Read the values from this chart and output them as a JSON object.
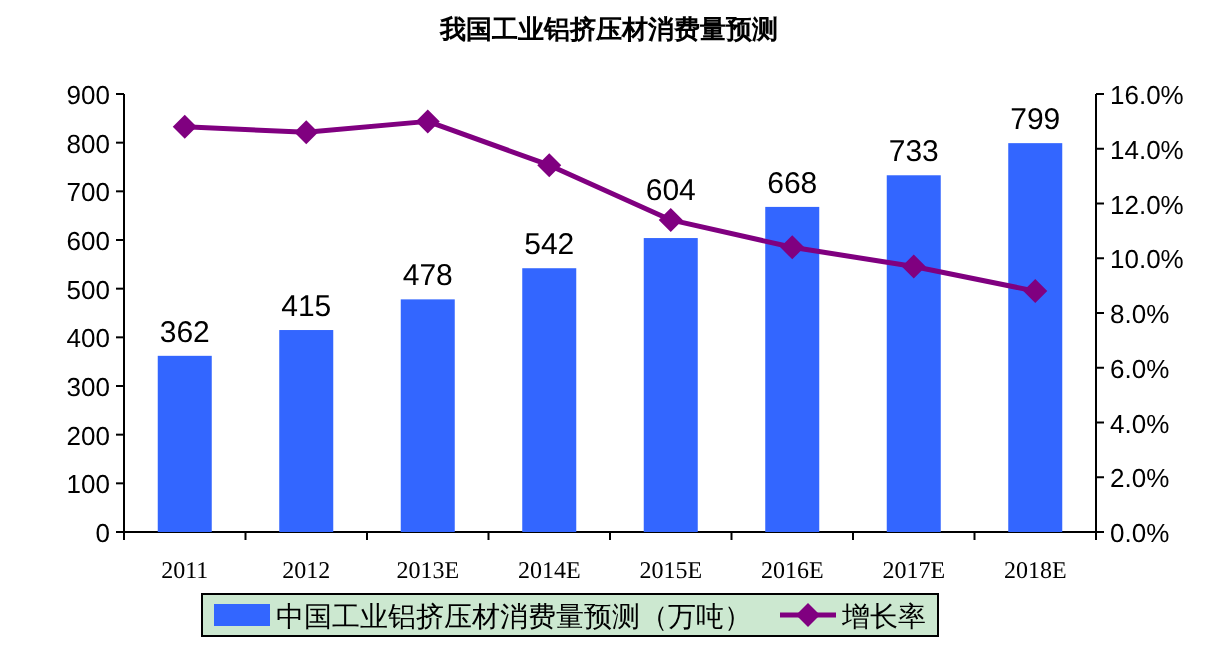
{
  "chart_data": {
    "type": "bar",
    "title": "我国工业铝挤压材消费量预测",
    "categories": [
      "2011",
      "2012",
      "2013E",
      "2014E",
      "2015E",
      "2016E",
      "2017E",
      "2018E"
    ],
    "series": [
      {
        "name": "中国工业铝挤压材消费量预测（万吨）",
        "color": "#3366ff",
        "values": [
          362,
          415,
          478,
          542,
          604,
          668,
          733,
          799
        ],
        "value_labels": [
          "362",
          "415",
          "478",
          "542",
          "604",
          "668",
          "733",
          "799"
        ]
      },
      {
        "name": "增长率",
        "type": "line",
        "axis": "y2",
        "color": "#800080",
        "values": [
          14.8,
          14.6,
          15.0,
          13.4,
          11.4,
          10.4,
          9.7,
          8.8
        ]
      }
    ],
    "ylim": [
      0,
      900
    ],
    "yticks": [
      0,
      100,
      200,
      300,
      400,
      500,
      600,
      700,
      800,
      900
    ],
    "y2lim": [
      0,
      16
    ],
    "y2ticks": [
      {
        "value": 0,
        "label": "0.0%"
      },
      {
        "value": 2,
        "label": "2.0%"
      },
      {
        "value": 4,
        "label": "4.0%"
      },
      {
        "value": 6,
        "label": "6.0%"
      },
      {
        "value": 8,
        "label": "8.0%"
      },
      {
        "value": 10,
        "label": "10.0%"
      },
      {
        "value": 12,
        "label": "12.0%"
      },
      {
        "value": 14,
        "label": "14.0%"
      },
      {
        "value": 16,
        "label": "16.0%"
      }
    ],
    "marker": "diamond",
    "legend": "bottom"
  }
}
